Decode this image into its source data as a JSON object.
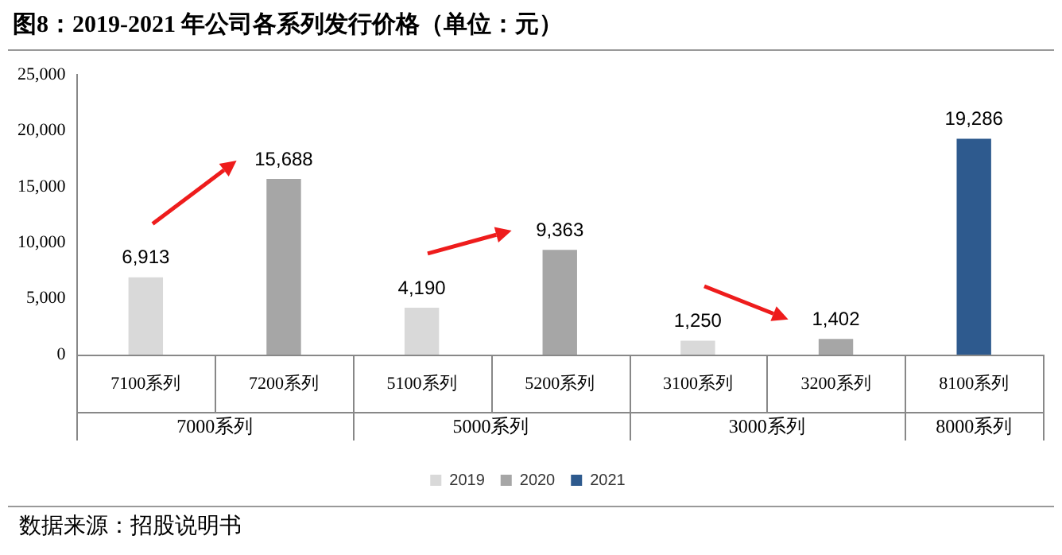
{
  "chart_data": {
    "type": "bar",
    "title": "图8：2019-2021 年公司各系列发行价格（单位：元）",
    "categories": [
      "7100系列",
      "7200系列",
      "5100系列",
      "5200系列",
      "3100系列",
      "3200系列",
      "8100系列"
    ],
    "stacked": true,
    "series": [
      {
        "name": "2019",
        "color": "#d9d9d9",
        "values": [
          6913,
          null,
          4190,
          null,
          1250,
          null,
          null
        ],
        "value_labels": [
          "6,913",
          null,
          "4,190",
          null,
          "1,250",
          null,
          null
        ]
      },
      {
        "name": "2020",
        "color": "#a6a6a6",
        "values": [
          null,
          15688,
          null,
          9363,
          null,
          1402,
          null
        ],
        "value_labels": [
          null,
          "15,688",
          null,
          "9,363",
          null,
          "1,402",
          null
        ]
      },
      {
        "name": "2021",
        "color": "#2e5a8e",
        "values": [
          null,
          null,
          null,
          null,
          null,
          null,
          19286
        ],
        "value_labels": [
          null,
          null,
          null,
          null,
          null,
          null,
          "19,286"
        ]
      }
    ],
    "ylim": [
      0,
      25000
    ],
    "yticks": [
      0,
      {
        "value": 5000,
        "label": "5,000"
      },
      {
        "value": 10000,
        "label": "10,000"
      },
      {
        "value": 15000,
        "label": "15,000"
      },
      {
        "value": 20000,
        "label": "20,000"
      },
      {
        "value": 25000,
        "label": "25,000"
      }
    ],
    "grid": false,
    "legend": "bottom",
    "annotations": [
      "7000系列",
      "5000系列",
      "3000系列",
      "8000系列",
      "数据来源：招股说明书"
    ]
  }
}
